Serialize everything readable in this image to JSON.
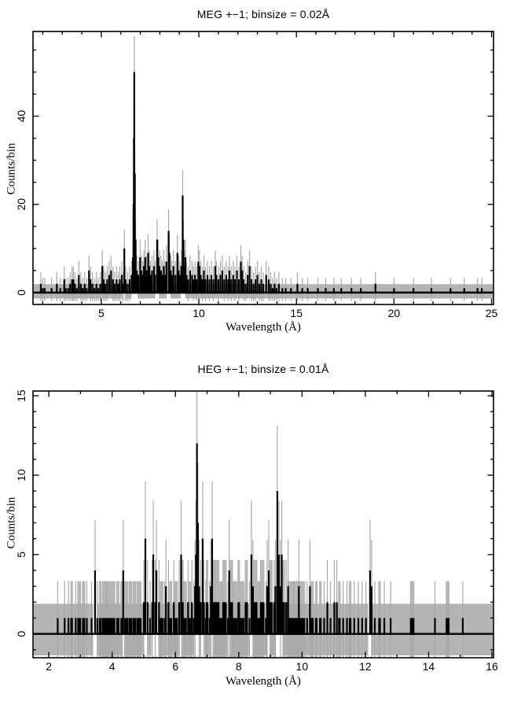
{
  "colors": {
    "data_line": "#000000",
    "error_bar": "#a9a9a9",
    "error_band": "#b4b4b4",
    "frame": "#000000",
    "background": "#ffffff"
  },
  "chart_data": [
    {
      "type": "bar",
      "subtype": "counts-histogram-spectrum",
      "title": "MEG +−1; binsize = 0.02Å",
      "xlabel": "Wavelength (Å)",
      "ylabel": "Counts/bin",
      "binsize_angstrom": 0.02,
      "xlim": [
        1.5,
        25.1
      ],
      "ylim": [
        -2.7,
        59.2
      ],
      "xticks_major": [
        5,
        10,
        15,
        20,
        25
      ],
      "xtick_minor_step": 1,
      "yticks_major": [
        0,
        20,
        40
      ],
      "ytick_minor_step": 5,
      "grid": false,
      "legend": false,
      "bins": [
        [
          1.9,
          2
        ],
        [
          2.0,
          1
        ],
        [
          2.1,
          1
        ],
        [
          2.45,
          1
        ],
        [
          2.72,
          2
        ],
        [
          2.9,
          1
        ],
        [
          3.1,
          3
        ],
        [
          3.18,
          1
        ],
        [
          3.3,
          1
        ],
        [
          3.4,
          2
        ],
        [
          3.5,
          3
        ],
        [
          3.57,
          3
        ],
        [
          3.65,
          2
        ],
        [
          3.75,
          1,
          0.08
        ],
        [
          3.85,
          4
        ],
        [
          3.95,
          2
        ],
        [
          4.05,
          1,
          0.1
        ],
        [
          4.15,
          2
        ],
        [
          4.25,
          1
        ],
        [
          4.37,
          5
        ],
        [
          4.45,
          3
        ],
        [
          4.55,
          2
        ],
        [
          4.65,
          1,
          0.08
        ],
        [
          4.75,
          2
        ],
        [
          4.85,
          1
        ],
        [
          4.95,
          2
        ],
        [
          5.05,
          6
        ],
        [
          5.12,
          3
        ],
        [
          5.2,
          2
        ],
        [
          5.3,
          3
        ],
        [
          5.4,
          4
        ],
        [
          5.5,
          5
        ],
        [
          5.6,
          3
        ],
        [
          5.68,
          2
        ],
        [
          5.78,
          3
        ],
        [
          5.87,
          2
        ],
        [
          5.95,
          3
        ],
        [
          6.05,
          4
        ],
        [
          6.12,
          2
        ],
        [
          6.18,
          10
        ],
        [
          6.25,
          3
        ],
        [
          6.35,
          2
        ],
        [
          6.45,
          3
        ],
        [
          6.55,
          4
        ],
        [
          6.62,
          8
        ],
        [
          6.65,
          20
        ],
        [
          6.67,
          35
        ],
        [
          6.69,
          50
        ],
        [
          6.72,
          27
        ],
        [
          6.76,
          12
        ],
        [
          6.82,
          5
        ],
        [
          6.9,
          4
        ],
        [
          6.99,
          8
        ],
        [
          7.05,
          5
        ],
        [
          7.12,
          4
        ],
        [
          7.18,
          6
        ],
        [
          7.25,
          8
        ],
        [
          7.32,
          5
        ],
        [
          7.4,
          9
        ],
        [
          7.46,
          6
        ],
        [
          7.52,
          4
        ],
        [
          7.6,
          5
        ],
        [
          7.7,
          6
        ],
        [
          7.76,
          4
        ],
        [
          7.86,
          12
        ],
        [
          7.92,
          8
        ],
        [
          7.98,
          6
        ],
        [
          8.06,
          5
        ],
        [
          8.12,
          4
        ],
        [
          8.2,
          6
        ],
        [
          8.27,
          4
        ],
        [
          8.34,
          7
        ],
        [
          8.45,
          14
        ],
        [
          8.49,
          9
        ],
        [
          8.56,
          5
        ],
        [
          8.62,
          4
        ],
        [
          8.7,
          6
        ],
        [
          8.8,
          4
        ],
        [
          8.9,
          9
        ],
        [
          8.96,
          5
        ],
        [
          9.02,
          4
        ],
        [
          9.1,
          6
        ],
        [
          9.17,
          22
        ],
        [
          9.21,
          12
        ],
        [
          9.26,
          6
        ],
        [
          9.31,
          8
        ],
        [
          9.37,
          4
        ],
        [
          9.45,
          3
        ],
        [
          9.55,
          5
        ],
        [
          9.65,
          4
        ],
        [
          9.72,
          3
        ],
        [
          9.8,
          4
        ],
        [
          9.88,
          3
        ],
        [
          9.97,
          7
        ],
        [
          10.03,
          6
        ],
        [
          10.1,
          4
        ],
        [
          10.18,
          3
        ],
        [
          10.26,
          5
        ],
        [
          10.34,
          3
        ],
        [
          10.44,
          4
        ],
        [
          10.54,
          3
        ],
        [
          10.64,
          4
        ],
        [
          10.74,
          3
        ],
        [
          10.84,
          6
        ],
        [
          10.9,
          4
        ],
        [
          11.0,
          3
        ],
        [
          11.1,
          4
        ],
        [
          11.2,
          5
        ],
        [
          11.3,
          3
        ],
        [
          11.4,
          4
        ],
        [
          11.5,
          3
        ],
        [
          11.57,
          5
        ],
        [
          11.66,
          3
        ],
        [
          11.76,
          4
        ],
        [
          11.85,
          3
        ],
        [
          11.95,
          5
        ],
        [
          12.05,
          3
        ],
        [
          12.15,
          7
        ],
        [
          12.22,
          5
        ],
        [
          12.3,
          3
        ],
        [
          12.4,
          2
        ],
        [
          12.5,
          4
        ],
        [
          12.6,
          6
        ],
        [
          12.7,
          3
        ],
        [
          12.8,
          2
        ],
        [
          12.9,
          3
        ],
        [
          13.0,
          4
        ],
        [
          13.1,
          2
        ],
        [
          13.2,
          3
        ],
        [
          13.3,
          2
        ],
        [
          13.45,
          4
        ],
        [
          13.58,
          3
        ],
        [
          13.68,
          2
        ],
        [
          13.78,
          1,
          0.1
        ],
        [
          13.88,
          2
        ],
        [
          13.98,
          1
        ],
        [
          14.1,
          2
        ],
        [
          14.28,
          1
        ],
        [
          14.45,
          1
        ],
        [
          14.72,
          1
        ],
        [
          15.05,
          2
        ],
        [
          15.3,
          1
        ],
        [
          15.58,
          1
        ],
        [
          16.1,
          1
        ],
        [
          16.5,
          1
        ],
        [
          16.92,
          1
        ],
        [
          17.3,
          1
        ],
        [
          17.82,
          1
        ],
        [
          18.3,
          1
        ],
        [
          19.05,
          2
        ],
        [
          20.0,
          1
        ],
        [
          21.0,
          1
        ],
        [
          21.92,
          1
        ],
        [
          22.9,
          1
        ],
        [
          23.6,
          1
        ],
        [
          24.28,
          1
        ],
        [
          24.5,
          1
        ]
      ]
    },
    {
      "type": "bar",
      "subtype": "counts-histogram-spectrum",
      "title": "HEG +−1; binsize = 0.01Å",
      "xlabel": "Wavelength (Å)",
      "ylabel": "Counts/bin",
      "binsize_angstrom": 0.01,
      "xlim": [
        1.5,
        16.05
      ],
      "ylim": [
        -1.5,
        15.3
      ],
      "xticks_major": [
        2,
        4,
        6,
        8,
        10,
        12,
        14,
        16
      ],
      "xtick_minor_step": 1,
      "yticks_major": [
        0,
        5,
        10,
        15
      ],
      "ytick_minor_step": 1,
      "grid": false,
      "legend": false,
      "bins": [
        [
          2.28,
          1
        ],
        [
          2.5,
          1
        ],
        [
          2.62,
          1
        ],
        [
          2.72,
          1,
          0.08
        ],
        [
          2.85,
          1
        ],
        [
          2.96,
          1,
          0.12
        ],
        [
          3.1,
          1,
          0.1
        ],
        [
          3.2,
          1
        ],
        [
          3.35,
          1
        ],
        [
          3.46,
          4
        ],
        [
          3.53,
          1
        ],
        [
          3.62,
          1,
          0.08
        ],
        [
          3.76,
          1,
          0.18
        ],
        [
          3.95,
          1,
          0.3
        ],
        [
          4.18,
          1,
          0.1
        ],
        [
          4.3,
          1,
          0.08
        ],
        [
          4.35,
          4
        ],
        [
          4.45,
          1,
          0.14
        ],
        [
          4.58,
          1,
          0.1
        ],
        [
          4.7,
          1,
          0.12
        ],
        [
          4.85,
          1,
          0.16
        ],
        [
          5.0,
          2
        ],
        [
          5.05,
          6
        ],
        [
          5.12,
          2
        ],
        [
          5.2,
          1
        ],
        [
          5.27,
          2
        ],
        [
          5.3,
          5
        ],
        [
          5.36,
          2
        ],
        [
          5.4,
          4
        ],
        [
          5.48,
          2
        ],
        [
          5.56,
          1,
          0.12
        ],
        [
          5.66,
          1
        ],
        [
          5.7,
          3
        ],
        [
          5.78,
          2
        ],
        [
          5.85,
          1,
          0.1
        ],
        [
          5.95,
          2
        ],
        [
          6.02,
          1,
          0.12
        ],
        [
          6.12,
          2
        ],
        [
          6.18,
          5
        ],
        [
          6.22,
          2,
          0.08
        ],
        [
          6.3,
          1,
          0.12
        ],
        [
          6.4,
          2
        ],
        [
          6.46,
          1,
          0.08
        ],
        [
          6.52,
          2
        ],
        [
          6.58,
          1
        ],
        [
          6.62,
          3
        ],
        [
          6.65,
          5
        ],
        [
          6.68,
          12
        ],
        [
          6.71,
          7
        ],
        [
          6.75,
          3
        ],
        [
          6.8,
          2,
          0.06
        ],
        [
          6.86,
          6
        ],
        [
          6.9,
          2
        ],
        [
          6.96,
          1
        ],
        [
          7.0,
          2,
          0.08
        ],
        [
          7.08,
          1
        ],
        [
          7.12,
          3
        ],
        [
          7.16,
          6
        ],
        [
          7.22,
          2,
          0.1
        ],
        [
          7.32,
          2,
          0.14
        ],
        [
          7.44,
          1,
          0.12
        ],
        [
          7.55,
          2,
          0.14
        ],
        [
          7.66,
          1
        ],
        [
          7.7,
          4
        ],
        [
          7.76,
          2,
          0.12
        ],
        [
          7.88,
          1,
          0.16
        ],
        [
          8.0,
          2,
          0.08
        ],
        [
          8.1,
          1,
          0.16
        ],
        [
          8.24,
          2,
          0.1
        ],
        [
          8.34,
          1
        ],
        [
          8.4,
          5
        ],
        [
          8.45,
          3
        ],
        [
          8.52,
          2,
          0.14
        ],
        [
          8.64,
          1,
          0.1
        ],
        [
          8.74,
          2,
          0.14
        ],
        [
          8.86,
          1
        ],
        [
          8.9,
          3
        ],
        [
          8.95,
          4
        ],
        [
          9.02,
          2,
          0.1
        ],
        [
          9.12,
          2
        ],
        [
          9.16,
          3
        ],
        [
          9.22,
          9
        ],
        [
          9.27,
          5
        ],
        [
          9.32,
          3
        ],
        [
          9.36,
          5
        ],
        [
          9.42,
          2,
          0.08
        ],
        [
          9.5,
          2
        ],
        [
          9.56,
          3
        ],
        [
          9.64,
          1,
          0.22
        ],
        [
          9.8,
          1,
          0.18
        ],
        [
          9.9,
          3
        ],
        [
          9.98,
          1,
          0.24
        ],
        [
          10.16,
          1
        ],
        [
          10.25,
          3
        ],
        [
          10.32,
          1,
          0.1
        ],
        [
          10.45,
          1,
          0.08
        ],
        [
          10.58,
          1,
          0.08
        ],
        [
          10.7,
          1
        ],
        [
          10.8,
          2
        ],
        [
          10.9,
          1
        ],
        [
          11.02,
          2
        ],
        [
          11.1,
          2
        ],
        [
          11.18,
          1,
          0.08
        ],
        [
          11.3,
          1
        ],
        [
          11.42,
          1
        ],
        [
          11.52,
          1,
          0.08
        ],
        [
          11.65,
          1
        ],
        [
          11.78,
          1
        ],
        [
          11.9,
          1
        ],
        [
          12.02,
          1
        ],
        [
          12.15,
          4
        ],
        [
          12.2,
          3
        ],
        [
          12.3,
          1
        ],
        [
          12.45,
          1,
          0.08
        ],
        [
          12.6,
          1
        ],
        [
          12.8,
          1
        ],
        [
          13.48,
          1,
          0.14
        ],
        [
          14.2,
          1
        ],
        [
          14.6,
          1,
          0.12
        ],
        [
          15.08,
          1
        ]
      ]
    }
  ]
}
